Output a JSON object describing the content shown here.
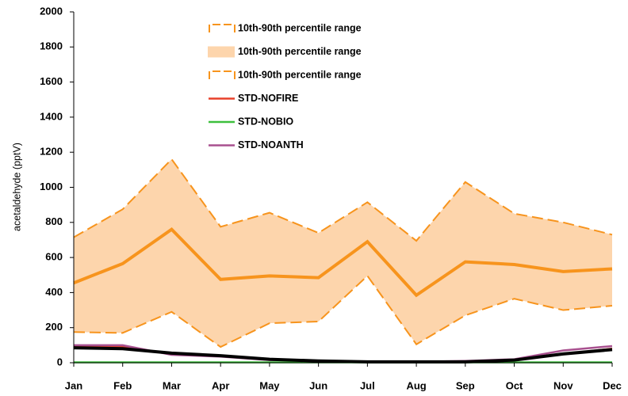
{
  "chart_data": {
    "type": "line",
    "y_label": "acetaldehyde (pptV)",
    "categories": [
      "Jan",
      "Feb",
      "Mar",
      "Apr",
      "May",
      "Jun",
      "Jul",
      "Aug",
      "Sep",
      "Oct",
      "Nov",
      "Dec"
    ],
    "ylim": [
      0,
      2000
    ],
    "yticks": [
      0,
      200,
      400,
      600,
      800,
      1000,
      1200,
      1400,
      1600,
      1800,
      2000
    ],
    "series": [
      {
        "name": "10th-90th percentile range",
        "color": "#f7941d",
        "style": "dashed",
        "values": [
          715,
          875,
          1160,
          775,
          855,
          740,
          915,
          695,
          1030,
          850,
          800,
          730
        ]
      },
      {
        "name": "10th-90th percentile range",
        "color": "#fdd5ac",
        "style": "fill",
        "fill_between": [
          0,
          2
        ]
      },
      {
        "name": "10th-90th percentile range",
        "color": "#f7941d",
        "style": "dashed",
        "values": [
          175,
          170,
          290,
          90,
          225,
          235,
          495,
          105,
          270,
          365,
          300,
          325
        ]
      },
      {
        "name": "STD-NOFIRE",
        "color": "#e8402a",
        "style": "solid",
        "values": [
          95,
          90,
          50,
          40,
          20,
          10,
          5,
          5,
          5,
          15,
          50,
          80
        ]
      },
      {
        "name": "STD-NOBIO",
        "color": "#3dbf3d",
        "style": "solid",
        "values": [
          2,
          2,
          2,
          2,
          2,
          2,
          2,
          2,
          2,
          2,
          2,
          2
        ]
      },
      {
        "name": "STD-NOANTH",
        "color": "#a8508f",
        "style": "solid",
        "values": [
          100,
          100,
          45,
          35,
          15,
          10,
          5,
          5,
          10,
          20,
          70,
          95
        ]
      },
      {
        "color": "#000000",
        "style": "thick",
        "values": [
          85,
          80,
          55,
          40,
          20,
          10,
          5,
          5,
          5,
          15,
          50,
          75
        ]
      },
      {
        "color": "#f7941d",
        "style": "thick",
        "values": [
          455,
          565,
          760,
          475,
          495,
          485,
          690,
          385,
          575,
          560,
          520,
          535
        ]
      }
    ]
  }
}
